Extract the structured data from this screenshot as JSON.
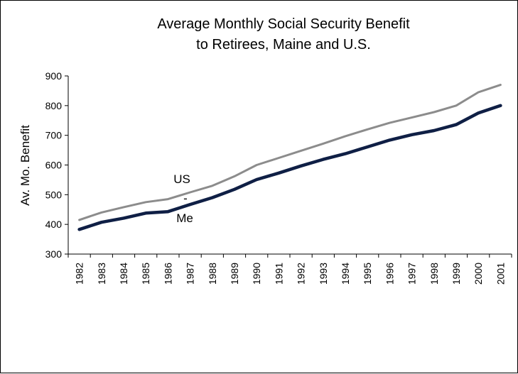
{
  "chart_data": {
    "type": "line",
    "title": "Average Monthly Social Security Benefit",
    "subtitle": "to Retirees, Maine and U.S.",
    "xlabel": "",
    "ylabel": "Av. Mo. Benefit",
    "ylim": [
      300,
      900
    ],
    "yticks": [
      300,
      400,
      500,
      600,
      700,
      800,
      900
    ],
    "grid": false,
    "legend": "none",
    "categories": [
      "1982",
      "1983",
      "1984",
      "1985",
      "1986",
      "1987",
      "1988",
      "1989",
      "1990",
      "1991",
      "1992",
      "1993",
      "1994",
      "1995",
      "1996",
      "1997",
      "1998",
      "1999",
      "2000",
      "2001"
    ],
    "series": [
      {
        "name": "US",
        "color": "#8c8c8c",
        "values": [
          415,
          440,
          458,
          475,
          485,
          508,
          530,
          562,
          600,
          624,
          648,
          672,
          697,
          720,
          742,
          760,
          778,
          800,
          845,
          870
        ]
      },
      {
        "name": "Me",
        "color": "#0f1f45",
        "values": [
          383,
          407,
          421,
          438,
          443,
          467,
          490,
          518,
          551,
          573,
          597,
          619,
          638,
          661,
          684,
          702,
          716,
          736,
          775,
          800
        ]
      }
    ],
    "annotations": [
      "US",
      "-",
      "Me"
    ]
  }
}
